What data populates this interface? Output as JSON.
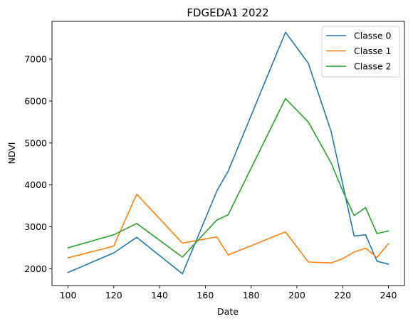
{
  "chart_data": {
    "type": "line",
    "title": "FDGEDA1 2022",
    "xlabel": "Date",
    "ylabel": "NDVI",
    "xlim": [
      93,
      247
    ],
    "ylim": [
      1600,
      7900
    ],
    "xticks": [
      100,
      120,
      140,
      160,
      180,
      200,
      220,
      240
    ],
    "yticks": [
      2000,
      3000,
      4000,
      5000,
      6000,
      7000
    ],
    "grid": false,
    "legend_position": "top-right",
    "series": [
      {
        "name": "Classe 0",
        "color": "#1f77b4",
        "x": [
          100,
          120,
          130,
          150,
          165,
          170,
          195,
          205,
          215,
          225,
          230,
          235,
          240
        ],
        "y": [
          1910,
          2380,
          2750,
          1880,
          3850,
          4330,
          7640,
          6900,
          5270,
          2780,
          2810,
          2180,
          2110
        ]
      },
      {
        "name": "Classe 1",
        "color": "#ff7f0e",
        "x": [
          100,
          120,
          130,
          150,
          165,
          170,
          195,
          205,
          215,
          220,
          225,
          230,
          235,
          240
        ],
        "y": [
          2260,
          2540,
          3780,
          2610,
          2760,
          2330,
          2880,
          2160,
          2140,
          2240,
          2400,
          2490,
          2270,
          2600
        ]
      },
      {
        "name": "Classe 2",
        "color": "#2ca02c",
        "x": [
          100,
          120,
          130,
          150,
          165,
          170,
          195,
          205,
          215,
          220,
          225,
          230,
          235,
          240
        ],
        "y": [
          2500,
          2810,
          3080,
          2280,
          3160,
          3290,
          6060,
          5500,
          4520,
          3860,
          3270,
          3460,
          2840,
          2900
        ]
      }
    ]
  }
}
